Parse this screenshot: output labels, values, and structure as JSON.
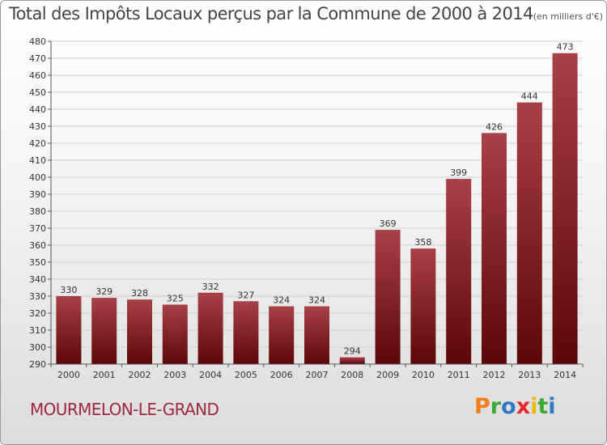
{
  "title": "Total des Impôts Locaux perçus par la Commune de 2000 à 2014",
  "unit_note": "(en milliers d'€)",
  "commune_name": "MOURMELON-LE-GRAND",
  "logo": {
    "letters": [
      "P",
      "r",
      "o",
      "x",
      "i",
      "t",
      "i"
    ],
    "colors": [
      "#f07d1a",
      "#3aa935",
      "#2f78c4",
      "#e8262b",
      "#f2b705",
      "#3aa935",
      "#2f78c4"
    ]
  },
  "colors": {
    "bar_top": "#a84048",
    "bar_bottom": "#5c0708",
    "grid": "#cfcfcf",
    "axis": "#555555",
    "title_text": "#444444",
    "commune_text": "#a0283c"
  },
  "chart_data": {
    "type": "bar",
    "title": "Total des Impôts Locaux perçus par la Commune de 2000 à 2014",
    "xlabel": "",
    "ylabel": "",
    "categories": [
      "2000",
      "2001",
      "2002",
      "2003",
      "2004",
      "2005",
      "2006",
      "2007",
      "2008",
      "2009",
      "2010",
      "2011",
      "2012",
      "2013",
      "2014"
    ],
    "values": [
      330,
      329,
      328,
      325,
      332,
      327,
      324,
      324,
      294,
      369,
      358,
      399,
      426,
      444,
      473
    ],
    "ylim": [
      290,
      480
    ],
    "ytick_step": 10,
    "grid": true,
    "data_labels": true
  }
}
